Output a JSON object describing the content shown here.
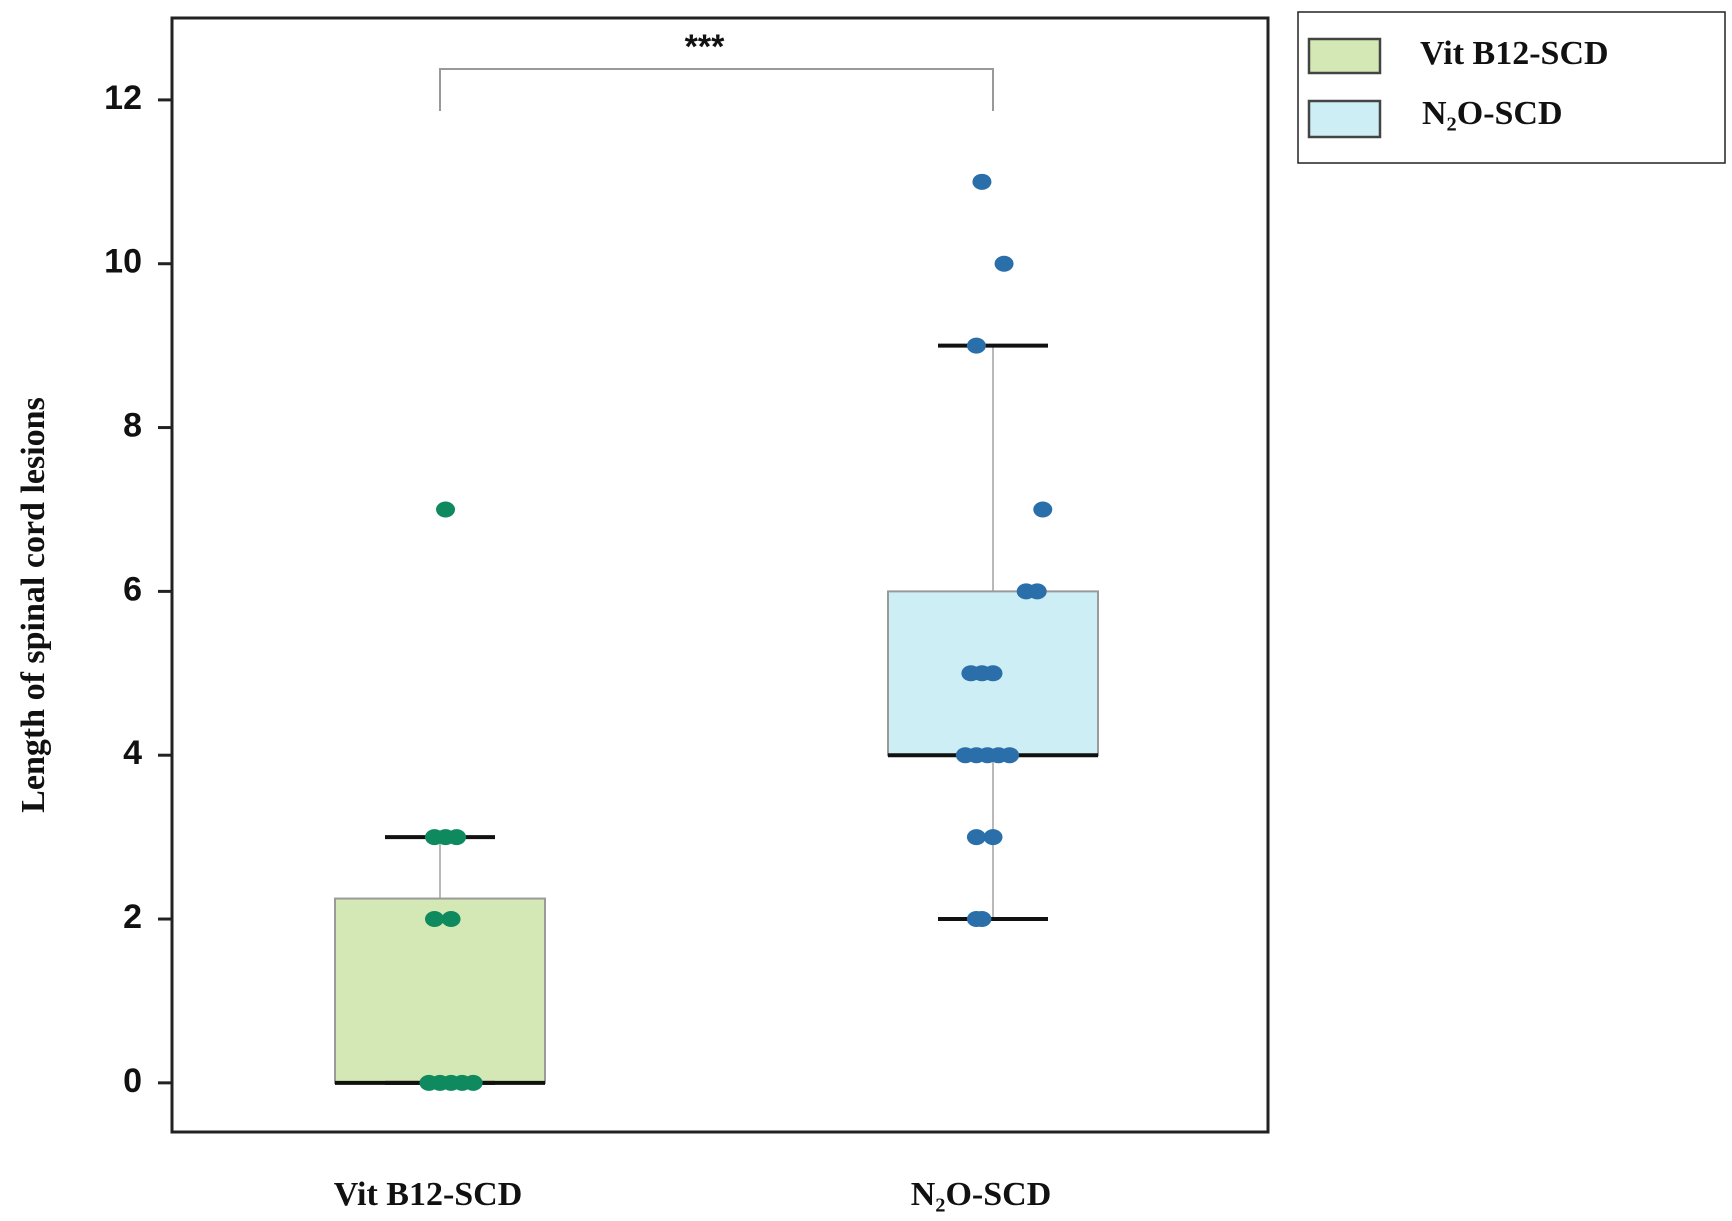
{
  "chart_data": {
    "type": "box",
    "ylabel": "Length of spinal cord lesions",
    "xlabel": "",
    "ylim": [
      -0.6,
      13.0
    ],
    "yticks": [
      0,
      2,
      4,
      6,
      8,
      10,
      12
    ],
    "categories": [
      "Vit B12-SCD",
      "N₂O-SCD"
    ],
    "legend": {
      "position": "top-right-outside",
      "entries": [
        "Vit B12-SCD",
        "N₂O-SCD"
      ]
    },
    "significance": {
      "label": "***",
      "between": [
        "Vit B12-SCD",
        "N₂O-SCD"
      ]
    },
    "series": [
      {
        "name": "Vit B12-SCD",
        "fill": "#d3e8b5",
        "point_color": "#0f8a5f",
        "box": {
          "whisker_low": 0,
          "q1": 0,
          "median": 0,
          "q3": 2.25,
          "whisker_high": 3
        },
        "points": [
          {
            "offset": -0.02,
            "y": 0
          },
          {
            "offset": 0.0,
            "y": 0
          },
          {
            "offset": 0.02,
            "y": 0
          },
          {
            "offset": 0.04,
            "y": 0
          },
          {
            "offset": 0.06,
            "y": 0
          },
          {
            "offset": -0.01,
            "y": 2
          },
          {
            "offset": 0.02,
            "y": 2
          },
          {
            "offset": -0.01,
            "y": 3
          },
          {
            "offset": 0.01,
            "y": 3
          },
          {
            "offset": 0.03,
            "y": 3
          },
          {
            "offset": 0.01,
            "y": 7
          }
        ]
      },
      {
        "name": "N₂O-SCD",
        "fill": "#cdeef5",
        "point_color": "#2a6faa",
        "box": {
          "whisker_low": 2,
          "q1": 4,
          "median": 4,
          "q3": 6,
          "whisker_high": 9
        },
        "points": [
          {
            "offset": -0.03,
            "y": 2
          },
          {
            "offset": -0.02,
            "y": 2
          },
          {
            "offset": -0.03,
            "y": 3
          },
          {
            "offset": 0.0,
            "y": 3
          },
          {
            "offset": -0.05,
            "y": 4
          },
          {
            "offset": -0.03,
            "y": 4
          },
          {
            "offset": -0.01,
            "y": 4
          },
          {
            "offset": 0.01,
            "y": 4
          },
          {
            "offset": 0.03,
            "y": 4
          },
          {
            "offset": -0.04,
            "y": 5
          },
          {
            "offset": -0.02,
            "y": 5
          },
          {
            "offset": 0.0,
            "y": 5
          },
          {
            "offset": 0.06,
            "y": 6
          },
          {
            "offset": 0.08,
            "y": 6
          },
          {
            "offset": 0.09,
            "y": 7
          },
          {
            "offset": -0.03,
            "y": 9
          },
          {
            "offset": 0.02,
            "y": 10
          },
          {
            "offset": -0.02,
            "y": 11
          }
        ]
      }
    ]
  }
}
